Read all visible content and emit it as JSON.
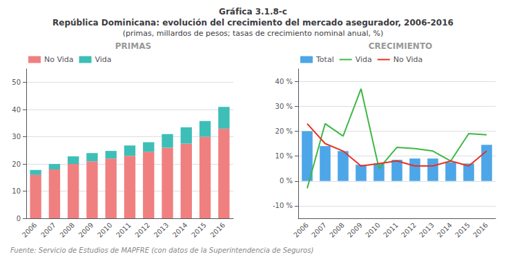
{
  "title": [
    "Gráfica 3.1.8-c",
    "República Dominicana: evolución del crecimiento del mercado asegurador, 2006-2016"
  ],
  "subtitle": "(primas, millardos de pesos; tasas de crecimiento nominal anual, %)",
  "annotations": [
    "Fuente: Servicio de Estudios de MAPFRE (con datos de la Superintendencia de Seguros)"
  ],
  "chart_data": [
    {
      "type": "bar",
      "title": "PRIMAS",
      "stacked": true,
      "categories": [
        "2006",
        "2007",
        "2008",
        "2009",
        "2010",
        "2011",
        "2012",
        "2013",
        "2014",
        "2015",
        "2016"
      ],
      "series": [
        {
          "name": "No Vida",
          "color": "#f08080",
          "values": [
            16.0,
            18.0,
            20.0,
            21.0,
            22.0,
            23.0,
            24.5,
            26.0,
            27.5,
            30.0,
            33.0
          ]
        },
        {
          "name": "Vida",
          "color": "#3dbfb8",
          "values": [
            1.8,
            2.0,
            2.8,
            3.0,
            2.8,
            3.8,
            3.5,
            5.0,
            6.0,
            5.8,
            8.0
          ]
        }
      ],
      "ylim": [
        0,
        55
      ],
      "yticks": [
        0,
        10,
        20,
        30,
        40,
        50
      ],
      "grid": true,
      "legend": "upper left"
    },
    {
      "type": "bar",
      "title": "CRECIMIENTO",
      "categories": [
        "2006",
        "2007",
        "2008",
        "2009",
        "2010",
        "2011",
        "2012",
        "2013",
        "2014",
        "2015",
        "2016"
      ],
      "series": [
        {
          "name": "Total",
          "type": "bar",
          "color": "#4da6e8",
          "values": [
            20.0,
            14.0,
            12.0,
            6.5,
            7.0,
            8.5,
            9.0,
            9.0,
            7.5,
            7.0,
            14.5
          ]
        },
        {
          "name": "Vida",
          "type": "line",
          "color": "#3db843",
          "values": [
            -3.0,
            23.0,
            18.0,
            37.0,
            5.0,
            13.5,
            13.0,
            12.0,
            8.0,
            19.0,
            18.5
          ]
        },
        {
          "name": "No Vida",
          "type": "line",
          "color": "#e83124",
          "values": [
            23.0,
            15.0,
            12.0,
            6.0,
            7.0,
            8.0,
            6.0,
            6.0,
            8.0,
            6.0,
            12.0
          ]
        }
      ],
      "ylim": [
        -15,
        45
      ],
      "yticks": [
        {
          "value": -10,
          "label": "-10 %"
        },
        {
          "value": 0,
          "label": "0 %"
        },
        {
          "value": 10,
          "label": "10 %"
        },
        {
          "value": 20,
          "label": "20 %"
        },
        {
          "value": 30,
          "label": "30 %"
        },
        {
          "value": 40,
          "label": "40 %"
        }
      ],
      "grid": true,
      "legend": "upper left"
    }
  ]
}
